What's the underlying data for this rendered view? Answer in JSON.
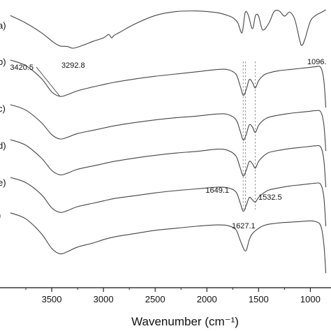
{
  "chart_data": {
    "type": "line",
    "title": "",
    "xlabel": "Wavenumber (cm⁻¹)",
    "ylabel": "",
    "xlim": [
      4000,
      800
    ],
    "x_reversed": true,
    "x_ticks": [
      3500,
      3000,
      2500,
      2000,
      1500,
      1000
    ],
    "x_tick_labels": [
      "3500",
      "3000",
      "2500",
      "2000",
      "1500",
      "1000"
    ],
    "y_ticks": "none",
    "grid": false,
    "legend": "none",
    "series_labels": [
      "a)",
      "b)",
      "c)",
      "d)",
      "e)",
      ")"
    ],
    "annotations": [
      {
        "text": "3420.5",
        "x": 3420.5,
        "series": 1
      },
      {
        "text": "3292.8",
        "x": 3292.8,
        "series": 0
      },
      {
        "text": "1096.",
        "x": 1096,
        "series": 0
      },
      {
        "text": "1649.1",
        "x": 1649.1,
        "series": 4
      },
      {
        "text": "1532.5",
        "x": 1532.5,
        "series": 4
      },
      {
        "text": "1627.1",
        "x": 1627.1,
        "series": 5
      }
    ],
    "guide_lines_x": [
      1649.1,
      1627.1,
      1532.5
    ],
    "series": [
      {
        "x": [
          3900,
          3750,
          3600,
          3480,
          3420,
          3350,
          3292,
          3200,
          3100,
          3000,
          2950,
          2920,
          2900,
          2850,
          2700,
          2500,
          2300,
          2100,
          1900,
          1780,
          1740,
          1700,
          1660,
          1630,
          1600,
          1560,
          1530,
          1500,
          1460,
          1400,
          1350,
          1300,
          1250,
          1200,
          1150,
          1100,
          1080,
          1050,
          1000,
          950,
          900,
          850
        ],
        "y": [
          0.85,
          0.72,
          0.55,
          0.38,
          0.32,
          0.31,
          0.28,
          0.33,
          0.4,
          0.46,
          0.52,
          0.46,
          0.5,
          0.55,
          0.7,
          0.85,
          0.92,
          0.93,
          0.9,
          0.84,
          0.8,
          0.72,
          0.55,
          0.9,
          0.86,
          0.62,
          0.85,
          0.84,
          0.6,
          0.72,
          0.92,
          0.93,
          0.84,
          0.91,
          0.78,
          0.4,
          0.33,
          0.45,
          0.75,
          0.85,
          0.9,
          0.95
        ]
      },
      {
        "x": [
          3900,
          3750,
          3600,
          3500,
          3420,
          3350,
          3250,
          3100,
          3000,
          2900,
          2700,
          2500,
          2300,
          2100,
          1900,
          1800,
          1720,
          1680,
          1649,
          1620,
          1590,
          1560,
          1532,
          1500,
          1450,
          1400,
          1300,
          1200,
          1100,
          1000,
          950,
          900,
          870,
          850
        ],
        "y": [
          0.95,
          0.85,
          0.62,
          0.38,
          0.3,
          0.33,
          0.4,
          0.47,
          0.51,
          0.55,
          0.61,
          0.66,
          0.7,
          0.74,
          0.78,
          0.78,
          0.7,
          0.5,
          0.32,
          0.42,
          0.6,
          0.55,
          0.45,
          0.58,
          0.68,
          0.72,
          0.76,
          0.78,
          0.8,
          0.82,
          0.83,
          0.82,
          0.6,
          0.1
        ]
      },
      {
        "x": [
          3900,
          3750,
          3600,
          3500,
          3420,
          3350,
          3250,
          3100,
          3000,
          2900,
          2700,
          2500,
          2300,
          2100,
          1900,
          1800,
          1720,
          1680,
          1649,
          1620,
          1590,
          1560,
          1532,
          1500,
          1450,
          1400,
          1300,
          1200,
          1100,
          1000,
          950,
          900,
          870,
          850
        ],
        "y": [
          0.95,
          0.85,
          0.62,
          0.4,
          0.32,
          0.35,
          0.42,
          0.48,
          0.52,
          0.56,
          0.62,
          0.67,
          0.71,
          0.74,
          0.78,
          0.77,
          0.68,
          0.48,
          0.3,
          0.4,
          0.58,
          0.54,
          0.44,
          0.57,
          0.67,
          0.72,
          0.76,
          0.79,
          0.81,
          0.83,
          0.84,
          0.82,
          0.6,
          0.1
        ]
      },
      {
        "x": [
          3900,
          3750,
          3600,
          3500,
          3420,
          3350,
          3250,
          3100,
          3000,
          2900,
          2700,
          2500,
          2300,
          2100,
          1900,
          1800,
          1720,
          1680,
          1649,
          1620,
          1590,
          1560,
          1532,
          1500,
          1450,
          1400,
          1300,
          1200,
          1100,
          1000,
          950,
          900,
          870,
          850
        ],
        "y": [
          0.95,
          0.85,
          0.62,
          0.4,
          0.32,
          0.35,
          0.42,
          0.48,
          0.52,
          0.56,
          0.62,
          0.67,
          0.71,
          0.74,
          0.78,
          0.76,
          0.66,
          0.46,
          0.3,
          0.4,
          0.56,
          0.52,
          0.44,
          0.56,
          0.66,
          0.72,
          0.76,
          0.79,
          0.81,
          0.83,
          0.84,
          0.82,
          0.6,
          0.1
        ]
      },
      {
        "x": [
          3900,
          3750,
          3600,
          3500,
          3420,
          3350,
          3250,
          3100,
          3000,
          2900,
          2700,
          2500,
          2300,
          2100,
          1900,
          1800,
          1720,
          1680,
          1649,
          1620,
          1590,
          1560,
          1532,
          1500,
          1450,
          1400,
          1300,
          1200,
          1100,
          1000,
          950,
          900,
          870,
          850
        ],
        "y": [
          0.95,
          0.86,
          0.65,
          0.42,
          0.34,
          0.37,
          0.44,
          0.5,
          0.54,
          0.58,
          0.63,
          0.68,
          0.72,
          0.75,
          0.78,
          0.77,
          0.7,
          0.52,
          0.36,
          0.46,
          0.6,
          0.56,
          0.52,
          0.6,
          0.68,
          0.73,
          0.77,
          0.8,
          0.82,
          0.84,
          0.85,
          0.83,
          0.62,
          0.1
        ]
      },
      {
        "x": [
          3900,
          3750,
          3600,
          3500,
          3420,
          3350,
          3250,
          3100,
          3000,
          2900,
          2700,
          2500,
          2300,
          2100,
          1900,
          1800,
          1720,
          1680,
          1627,
          1590,
          1560,
          1500,
          1450,
          1400,
          1300,
          1200,
          1100,
          1000,
          950,
          900,
          870,
          850
        ],
        "y": [
          0.95,
          0.86,
          0.64,
          0.42,
          0.34,
          0.37,
          0.44,
          0.5,
          0.55,
          0.59,
          0.64,
          0.69,
          0.72,
          0.75,
          0.77,
          0.76,
          0.7,
          0.55,
          0.38,
          0.55,
          0.64,
          0.72,
          0.76,
          0.78,
          0.8,
          0.81,
          0.82,
          0.83,
          0.82,
          0.76,
          0.5,
          0.05
        ]
      }
    ]
  }
}
